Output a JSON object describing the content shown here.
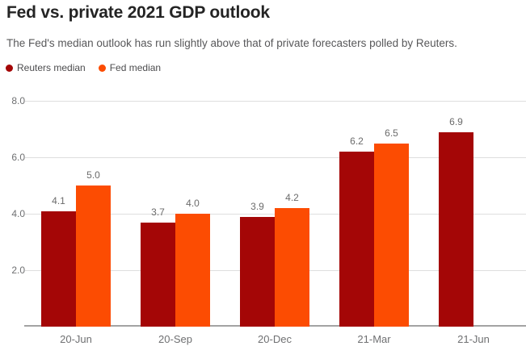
{
  "header": {
    "title": "Fed vs. private 2021 GDP outlook",
    "subtitle": "The Fed's median outlook has run slightly above that of private forecasters polled by Reuters."
  },
  "colors": {
    "reuters_red": "#a40606",
    "fed_orange": "#fc4c02",
    "gridline": "#dedede",
    "axis_line": "#a3a3a3",
    "muted_text": "#6f7072"
  },
  "chart_data": {
    "type": "bar",
    "title": "Fed vs. private 2021 GDP outlook",
    "subtitle": "The Fed's median outlook has run slightly above that of private forecasters polled by Reuters.",
    "categories": [
      "20-Jun",
      "20-Sep",
      "20-Dec",
      "21-Mar",
      "21-Jun"
    ],
    "series": [
      {
        "name": "Reuters median",
        "color": "#a40606",
        "values": [
          4.1,
          3.7,
          3.9,
          6.2,
          6.9
        ]
      },
      {
        "name": "Fed median",
        "color": "#fc4c02",
        "values": [
          5.0,
          4.0,
          4.2,
          6.5,
          null
        ]
      }
    ],
    "xlabel": "",
    "ylabel": "",
    "ylim": [
      0,
      8
    ],
    "yticks": [
      "2.0",
      "4.0",
      "6.0",
      "8.0"
    ],
    "grid": true,
    "legend_position": "top-left",
    "value_labels": true
  }
}
